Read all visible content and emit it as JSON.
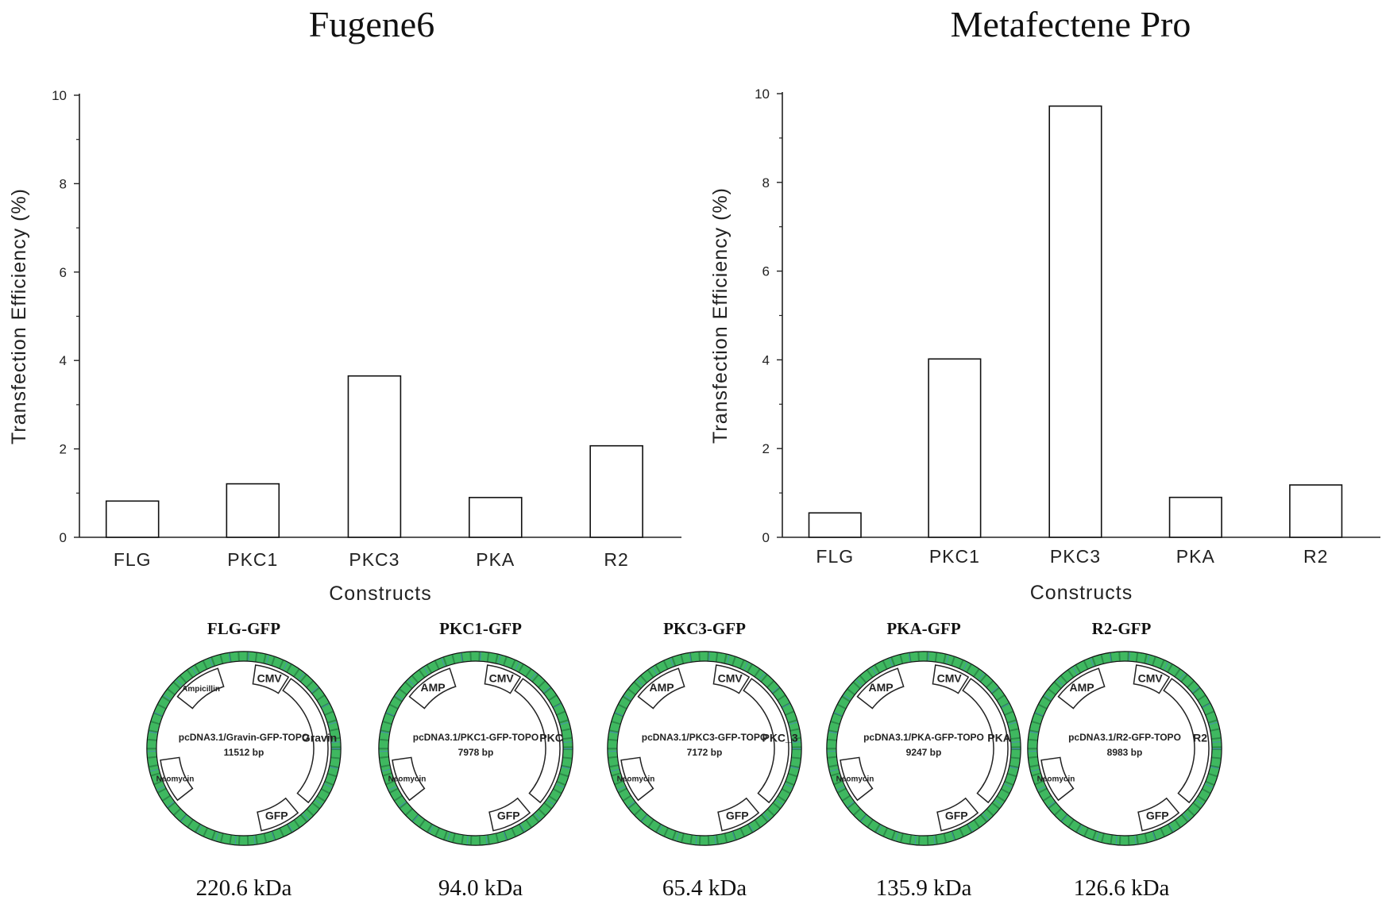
{
  "chart_data": [
    {
      "type": "bar",
      "title": "Fugene6",
      "xlabel": "Constructs",
      "ylabel": "Transfection Efficiency (%)",
      "categories": [
        "FLG",
        "PKC1",
        "PKC3",
        "PKA",
        "R2"
      ],
      "values": [
        0.82,
        1.21,
        3.65,
        0.9,
        2.07
      ],
      "ylim": [
        0,
        10
      ],
      "yticks": [
        "0",
        "2",
        "4",
        "6",
        "8",
        "10"
      ],
      "grid": false
    },
    {
      "type": "bar",
      "title": "Metafectene Pro",
      "xlabel": "Constructs",
      "ylabel": "Transfection Efficiency (%)",
      "categories": [
        "FLG",
        "PKC1",
        "PKC3",
        "PKA",
        "R2"
      ],
      "values": [
        0.55,
        4.02,
        9.72,
        0.9,
        1.18
      ],
      "ylim": [
        0,
        10
      ],
      "yticks": [
        "0",
        "2",
        "4",
        "6",
        "8",
        "10"
      ],
      "grid": false
    }
  ],
  "plasmids": [
    {
      "title": "FLG-GFP",
      "name": "pcDNA3.1/Gravin-GFP-TOPO",
      "size": "11512 bp",
      "kda": "220.6 kDa",
      "features": {
        "amp": "Ampicillin",
        "cmv": "CMV",
        "insert": "Gravin",
        "gfp": "GFP",
        "neo": "Neomycin"
      }
    },
    {
      "title": "PKC1-GFP",
      "name": "pcDNA3.1/PKC1-GFP-TOPO",
      "size": "7978 bp",
      "kda": "94.0 kDa",
      "features": {
        "amp": "AMP",
        "cmv": "CMV",
        "insert": "PKC",
        "gfp": "GFP",
        "neo": "Neomycin"
      }
    },
    {
      "title": "PKC3-GFP",
      "name": "pcDNA3.1/PKC3-GFP-TOPO",
      "size": "7172 bp",
      "kda": "65.4 kDa",
      "features": {
        "amp": "AMP",
        "cmv": "CMV",
        "insert": "PKC_3",
        "gfp": "GFP",
        "neo": "Neomycin"
      }
    },
    {
      "title": "PKA-GFP",
      "name": "pcDNA3.1/PKA-GFP-TOPO",
      "size": "9247 bp",
      "kda": "135.9 kDa",
      "features": {
        "amp": "AMP",
        "cmv": "CMV",
        "insert": "PKA",
        "gfp": "GFP",
        "neo": "Neomycin"
      }
    },
    {
      "title": "R2-GFP",
      "name": "pcDNA3.1/R2-GFP-TOPO",
      "size": "8983 bp",
      "kda": "126.6 kDa",
      "features": {
        "amp": "AMP",
        "cmv": "CMV",
        "insert": "R2",
        "gfp": "GFP",
        "neo": "Neomycin"
      }
    }
  ],
  "colors": {
    "ring": "#3fb860",
    "ring_dark": "#1f6e3a",
    "ring_accent": "#4a7fd0",
    "bar_fill": "#ffffff",
    "bar_stroke": "#111111"
  }
}
